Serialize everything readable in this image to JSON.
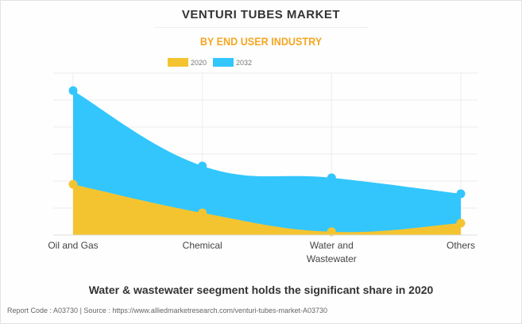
{
  "header": {
    "title": "VENTURI TUBES MARKET",
    "subtitle": "BY END USER INDUSTRY"
  },
  "chart_data": {
    "type": "area",
    "title": "VENTURI TUBES MARKET",
    "subtitle": "BY END USER INDUSTRY",
    "categories": [
      "Oil and Gas",
      "Chemical",
      "Water and Wastewater",
      "Others"
    ],
    "category_lines": [
      [
        "Oil and Gas"
      ],
      [
        "Chemical"
      ],
      [
        "Water and",
        "Wastewater"
      ],
      [
        "Others"
      ]
    ],
    "series": [
      {
        "name": "2020",
        "color": "#f4c430",
        "values": [
          1.88,
          0.82,
          0.12,
          0.44
        ]
      },
      {
        "name": "2032",
        "color": "#33c6fd",
        "values": [
          5.35,
          2.56,
          2.12,
          1.53
        ]
      }
    ],
    "ylim": [
      0,
      6
    ],
    "grid": true,
    "legend_position": "top-center",
    "xlabel": "",
    "ylabel": ""
  },
  "caption": "Water & wastewater seegment holds the significant share in 2020",
  "footer": "Report Code : A03730  |  Source : https://www.alliedmarketresearch.com/venturi-tubes-market-A03730"
}
